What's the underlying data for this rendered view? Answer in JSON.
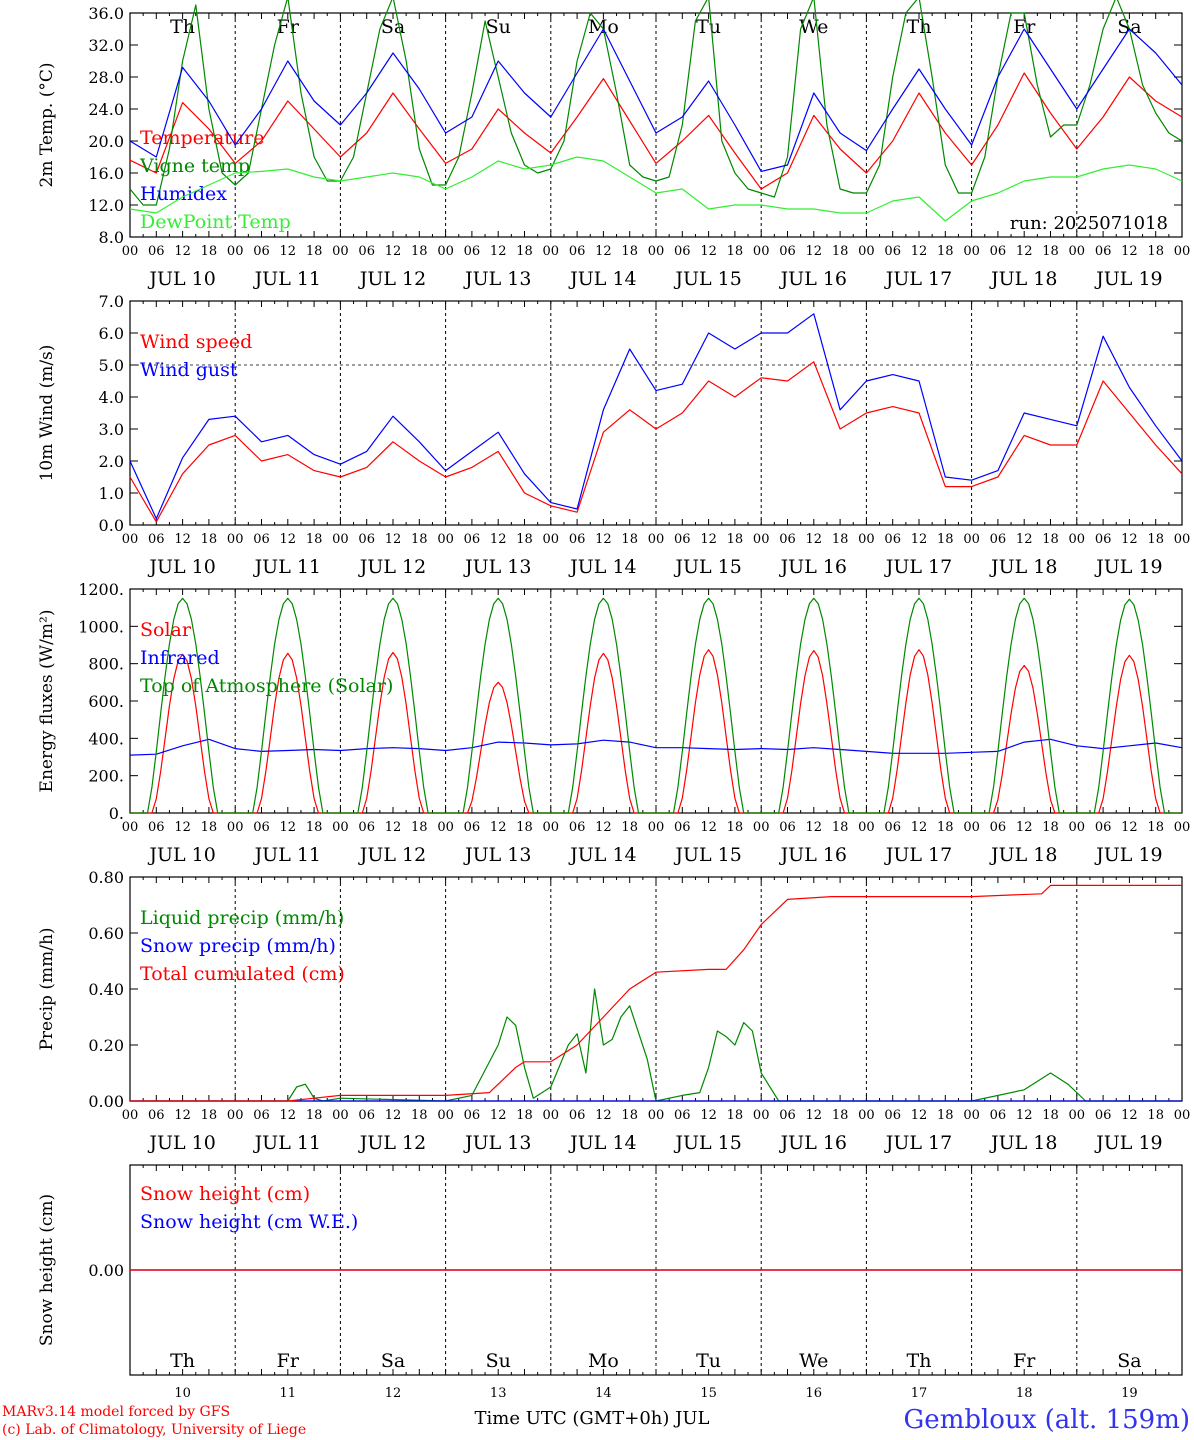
{
  "colors": {
    "red": "#ff0000",
    "green": "#008800",
    "lime": "#33ee33",
    "blue": "#0000ff",
    "weekend": "#ff0000"
  },
  "days": [
    {
      "dow": "Th",
      "date": "JUL 10",
      "num": "10",
      "weekend": false
    },
    {
      "dow": "Fr",
      "date": "JUL 11",
      "num": "11",
      "weekend": false
    },
    {
      "dow": "Sa",
      "date": "JUL 12",
      "num": "12",
      "weekend": true
    },
    {
      "dow": "Su",
      "date": "JUL 13",
      "num": "13",
      "weekend": true
    },
    {
      "dow": "Mo",
      "date": "JUL 14",
      "num": "14",
      "weekend": false
    },
    {
      "dow": "Tu",
      "date": "JUL 15",
      "num": "15",
      "weekend": false
    },
    {
      "dow": "We",
      "date": "JUL 16",
      "num": "16",
      "weekend": false
    },
    {
      "dow": "Th",
      "date": "JUL 17",
      "num": "17",
      "weekend": false
    },
    {
      "dow": "Fr",
      "date": "JUL 18",
      "num": "18",
      "weekend": false
    },
    {
      "dow": "Sa",
      "date": "JUL 19",
      "num": "19",
      "weekend": true
    }
  ],
  "hour_ticks": [
    "00",
    "06",
    "12",
    "18"
  ],
  "run_label": "run: 2025071018",
  "footer": {
    "credit_line1": "MARv3.14 model forced by GFS",
    "credit_line2": "(c) Lab. of Climatology, University of Liege",
    "xlabel": "Time UTC (GMT+0h) JUL",
    "station": "Gembloux (alt. 159m)"
  },
  "chart_data": [
    {
      "type": "line",
      "ylabel": "2m Temp. (°C)",
      "ylim": [
        8,
        36
      ],
      "yticks": [
        "8.0",
        "12.0",
        "16.0",
        "20.0",
        "24.0",
        "28.0",
        "32.0",
        "36.0"
      ],
      "x_unit": "hours since JUL 10 00 UTC",
      "series": [
        {
          "name": "Temperature",
          "color": "red",
          "x": [
            0,
            6,
            12,
            18,
            24,
            30,
            36,
            42,
            48,
            54,
            60,
            66,
            72,
            78,
            84,
            90,
            96,
            102,
            108,
            114,
            120,
            126,
            132,
            138,
            144,
            150,
            156,
            162,
            168,
            174,
            180,
            186,
            192,
            198,
            204,
            210,
            216,
            222,
            228,
            234,
            240
          ],
          "values": [
            17.6,
            16.0,
            24.8,
            21.5,
            17.2,
            20.0,
            25.0,
            21.5,
            18.0,
            21.0,
            26.0,
            21.5,
            17.2,
            19.0,
            24.0,
            21.0,
            18.5,
            23.0,
            27.8,
            22.5,
            17.2,
            20.0,
            23.2,
            18.5,
            14.0,
            16.0,
            23.2,
            19.0,
            16.0,
            20.0,
            26.0,
            21.0,
            17.0,
            22.0,
            28.5,
            23.5,
            19.0,
            23.0,
            28.0,
            25.0,
            23.0
          ]
        },
        {
          "name": "Vigne temp",
          "color": "green",
          "x": [
            0,
            3,
            6,
            9,
            12,
            15,
            18,
            21,
            24,
            27,
            30,
            33,
            36,
            39,
            42,
            45,
            48,
            51,
            54,
            57,
            60,
            63,
            66,
            69,
            72,
            75,
            78,
            81,
            84,
            87,
            90,
            93,
            96,
            99,
            102,
            105,
            108,
            111,
            114,
            117,
            120,
            123,
            126,
            129,
            132,
            135,
            138,
            141,
            144,
            147,
            150,
            153,
            156,
            159,
            162,
            165,
            168,
            171,
            174,
            177,
            180,
            183,
            186,
            189,
            192,
            195,
            198,
            201,
            204,
            207,
            210,
            213,
            216,
            219,
            222,
            225,
            228,
            231,
            234,
            237,
            240
          ],
          "values": [
            14.0,
            12.0,
            12.0,
            19.0,
            30.0,
            37.0,
            24.0,
            16.0,
            14.5,
            16.0,
            24.0,
            32.0,
            38.0,
            26.0,
            18.0,
            15.0,
            15.0,
            18.0,
            26.0,
            34.0,
            38.0,
            30.0,
            19.0,
            14.5,
            14.5,
            18.0,
            26.0,
            35.0,
            28.0,
            21.0,
            17.0,
            16.0,
            16.5,
            20.0,
            30.0,
            36.0,
            34.0,
            26.0,
            17.0,
            15.5,
            15.0,
            15.5,
            22.0,
            35.0,
            38.0,
            20.0,
            16.0,
            14.0,
            13.5,
            13.0,
            18.0,
            34.0,
            38.0,
            22.0,
            14.0,
            13.5,
            13.5,
            17.0,
            28.0,
            36.0,
            38.0,
            28.0,
            17.0,
            13.5,
            13.5,
            18.0,
            28.0,
            36.0,
            36.0,
            27.0,
            20.5,
            22.0,
            22.0,
            27.0,
            34.0,
            38.0,
            34.0,
            27.0,
            23.5,
            21.0,
            20.0
          ]
        },
        {
          "name": "Humidex",
          "color": "blue",
          "x": [
            0,
            6,
            12,
            18,
            24,
            30,
            36,
            42,
            48,
            54,
            60,
            66,
            72,
            78,
            84,
            90,
            96,
            102,
            108,
            114,
            120,
            126,
            132,
            138,
            144,
            150,
            156,
            162,
            168,
            174,
            180,
            186,
            192,
            198,
            204,
            210,
            216,
            222,
            228,
            234,
            240
          ],
          "values": [
            20.0,
            18.0,
            29.2,
            25.0,
            19.5,
            24.0,
            30.0,
            25.0,
            22.0,
            26.0,
            31.0,
            26.5,
            21.0,
            23.0,
            30.0,
            26.0,
            23.0,
            28.5,
            34.0,
            27.5,
            21.0,
            23.0,
            27.5,
            22.0,
            16.2,
            17.0,
            26.0,
            21.0,
            18.8,
            24.0,
            29.0,
            24.0,
            19.5,
            28.0,
            34.0,
            29.0,
            24.0,
            29.0,
            34.0,
            31.0,
            27.0
          ]
        },
        {
          "name": "DewPoint Temp",
          "color": "lime",
          "x": [
            0,
            6,
            12,
            18,
            24,
            30,
            36,
            42,
            48,
            54,
            60,
            66,
            72,
            78,
            84,
            90,
            96,
            102,
            108,
            114,
            120,
            126,
            132,
            138,
            144,
            150,
            156,
            162,
            168,
            174,
            180,
            186,
            192,
            198,
            204,
            210,
            216,
            222,
            228,
            234,
            240
          ],
          "values": [
            11.5,
            11.0,
            13.0,
            14.5,
            16.0,
            16.2,
            16.5,
            15.5,
            15.0,
            15.5,
            16.0,
            15.5,
            14.0,
            15.5,
            17.5,
            16.5,
            17.0,
            18.0,
            17.5,
            15.5,
            13.5,
            14.0,
            11.5,
            12.0,
            12.0,
            11.5,
            11.5,
            11.0,
            11.0,
            12.5,
            13.0,
            10.0,
            12.5,
            13.5,
            15.0,
            15.5,
            15.5,
            16.5,
            17.0,
            16.5,
            15.0
          ]
        }
      ]
    },
    {
      "type": "line",
      "ylabel": "10m Wind (m/s)",
      "ylim": [
        0,
        7
      ],
      "yticks": [
        "0.0",
        "1.0",
        "2.0",
        "3.0",
        "4.0",
        "5.0",
        "6.0",
        "7.0"
      ],
      "hline": 5.0,
      "series": [
        {
          "name": "Wind speed",
          "color": "red",
          "x": [
            0,
            6,
            12,
            18,
            24,
            30,
            36,
            42,
            48,
            54,
            60,
            66,
            72,
            78,
            84,
            90,
            96,
            102,
            108,
            114,
            120,
            126,
            132,
            138,
            144,
            150,
            156,
            162,
            168,
            174,
            180,
            186,
            192,
            198,
            204,
            210,
            216,
            222,
            228,
            234,
            240
          ],
          "values": [
            1.5,
            0.1,
            1.6,
            2.5,
            2.8,
            2.0,
            2.2,
            1.7,
            1.5,
            1.8,
            2.6,
            2.0,
            1.5,
            1.8,
            2.3,
            1.0,
            0.6,
            0.4,
            2.9,
            3.6,
            3.0,
            3.5,
            4.5,
            4.0,
            4.6,
            4.5,
            5.1,
            3.0,
            3.5,
            3.7,
            3.5,
            1.2,
            1.2,
            1.5,
            2.8,
            2.5,
            2.5,
            4.5,
            3.5,
            2.5,
            1.6
          ]
        },
        {
          "name": "Wind gust",
          "color": "blue",
          "x": [
            0,
            6,
            12,
            18,
            24,
            30,
            36,
            42,
            48,
            54,
            60,
            66,
            72,
            78,
            84,
            90,
            96,
            102,
            108,
            114,
            120,
            126,
            132,
            138,
            144,
            150,
            156,
            162,
            168,
            174,
            180,
            186,
            192,
            198,
            204,
            210,
            216,
            222,
            228,
            234,
            240
          ],
          "values": [
            2.0,
            0.2,
            2.1,
            3.3,
            3.4,
            2.6,
            2.8,
            2.2,
            1.9,
            2.3,
            3.4,
            2.6,
            1.7,
            2.3,
            2.9,
            1.6,
            0.7,
            0.5,
            3.6,
            5.5,
            4.2,
            4.4,
            6.0,
            5.5,
            6.0,
            6.0,
            6.6,
            3.6,
            4.5,
            4.7,
            4.5,
            1.5,
            1.4,
            1.7,
            3.5,
            3.3,
            3.1,
            5.9,
            4.3,
            3.1,
            2.0
          ]
        }
      ]
    },
    {
      "type": "line",
      "ylabel": "Energy fluxes (W/m²)",
      "ylim": [
        0,
        1200
      ],
      "yticks": [
        "0.",
        "200.",
        "400.",
        "600.",
        "800.",
        "1000.",
        "1200."
      ],
      "series": [
        {
          "name": "Solar",
          "color": "red",
          "daily_peak": [
            850,
            855,
            860,
            700,
            855,
            875,
            870,
            875,
            790,
            845
          ],
          "daily_shape_note": "",
          "x": [],
          "values": []
        },
        {
          "name": "Infrared",
          "color": "blue",
          "x": [
            0,
            6,
            12,
            18,
            24,
            30,
            36,
            42,
            48,
            54,
            60,
            66,
            72,
            78,
            84,
            90,
            96,
            102,
            108,
            114,
            120,
            126,
            132,
            138,
            144,
            150,
            156,
            162,
            168,
            174,
            180,
            186,
            192,
            198,
            204,
            210,
            216,
            222,
            228,
            234,
            240
          ],
          "values": [
            310,
            315,
            360,
            395,
            345,
            330,
            335,
            340,
            335,
            345,
            350,
            345,
            335,
            350,
            380,
            375,
            365,
            370,
            390,
            380,
            350,
            350,
            345,
            340,
            345,
            340,
            350,
            340,
            330,
            320,
            320,
            320,
            325,
            330,
            380,
            395,
            360,
            345,
            360,
            375,
            350
          ]
        },
        {
          "name": "Top of Atmosphere (Solar)",
          "color": "green",
          "daily_peak": [
            1150,
            1150,
            1150,
            1150,
            1150,
            1150,
            1150,
            1150,
            1150,
            1145
          ],
          "x": [],
          "values": []
        }
      ]
    },
    {
      "type": "line",
      "ylabel": "Precip (mm/h)",
      "ylim": [
        0,
        0.8
      ],
      "yticks": [
        "0.00",
        "0.20",
        "0.40",
        "0.60",
        "0.80"
      ],
      "series": [
        {
          "name": "Liquid precip (mm/h)",
          "color": "green",
          "x": [
            0,
            36,
            38,
            40,
            42,
            44,
            48,
            72,
            78,
            84,
            86,
            88,
            90,
            92,
            96,
            100,
            102,
            104,
            106,
            108,
            110,
            112,
            114,
            118,
            120,
            126,
            130,
            132,
            134,
            136,
            138,
            140,
            142,
            144,
            148,
            150,
            160,
            192,
            204,
            210,
            212,
            214,
            218,
            240
          ],
          "values": [
            0,
            0,
            0.05,
            0.06,
            0.01,
            0,
            0.01,
            0,
            0.02,
            0.2,
            0.3,
            0.27,
            0.12,
            0.01,
            0.05,
            0.2,
            0.24,
            0.1,
            0.4,
            0.2,
            0.22,
            0.3,
            0.34,
            0.15,
            0,
            0.02,
            0.03,
            0.12,
            0.25,
            0.23,
            0.2,
            0.28,
            0.25,
            0.1,
            0,
            0,
            0,
            0,
            0.04,
            0.1,
            0.08,
            0.06,
            0,
            0
          ]
        },
        {
          "name": "Snow precip (mm/h)",
          "color": "blue",
          "x": [
            0,
            240
          ],
          "values": [
            0,
            0
          ]
        },
        {
          "name": "Total cumulated (cm)",
          "color": "red",
          "x": [
            0,
            36,
            42,
            48,
            72,
            82,
            84,
            88,
            90,
            96,
            102,
            108,
            114,
            120,
            132,
            136,
            140,
            144,
            150,
            160,
            192,
            208,
            210,
            216,
            240
          ],
          "values": [
            0,
            0,
            0.01,
            0.02,
            0.02,
            0.03,
            0.06,
            0.12,
            0.14,
            0.14,
            0.2,
            0.3,
            0.4,
            0.46,
            0.47,
            0.47,
            0.54,
            0.63,
            0.72,
            0.73,
            0.73,
            0.74,
            0.77,
            0.77,
            0.77
          ]
        }
      ]
    },
    {
      "type": "line",
      "ylabel": "Snow height (cm)",
      "ylim": [
        -1,
        1
      ],
      "yticks": [
        "0.00"
      ],
      "series": [
        {
          "name": "Snow height (cm)",
          "color": "red",
          "x": [
            0,
            240
          ],
          "values": [
            0,
            0
          ]
        },
        {
          "name": "Snow height (cm W.E.)",
          "color": "blue",
          "x": [
            0,
            240
          ],
          "values": [
            0,
            0
          ]
        }
      ]
    }
  ]
}
